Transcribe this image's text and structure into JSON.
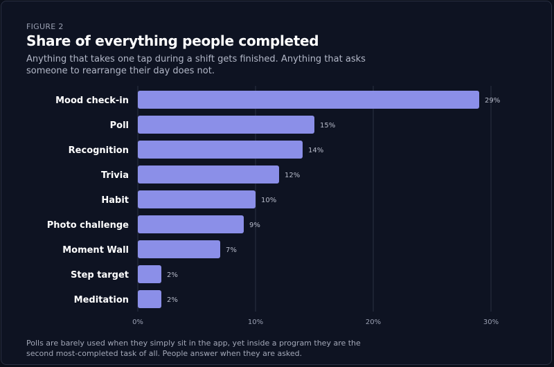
{
  "header": {
    "eyebrow": "FIGURE 2",
    "title": "Share of everything people completed",
    "subtitle": "Anything that takes one tap during a shift gets finished. Anything that asks someone to rearrange their day does not."
  },
  "footer": {
    "note": "Polls are barely used when they simply sit in the app, yet inside a program they are the second most-completed task of all. People answer when they are asked."
  },
  "colors": {
    "bar": "#8b8fe8",
    "grid": "#2a3042"
  },
  "chart_data": {
    "type": "bar",
    "orientation": "horizontal",
    "categories": [
      "Mood check-in",
      "Poll",
      "Recognition",
      "Trivia",
      "Habit",
      "Photo challenge",
      "Moment Wall",
      "Step target",
      "Meditation"
    ],
    "values": [
      29,
      15,
      14,
      12,
      10,
      9,
      7,
      2,
      2
    ],
    "value_labels": [
      "29%",
      "15%",
      "14%",
      "12%",
      "10%",
      "9%",
      "7%",
      "2%",
      "2%"
    ],
    "xlim": [
      0,
      30
    ],
    "x_ticks": [
      0,
      10,
      20,
      30
    ],
    "x_tick_labels": [
      "0%",
      "10%",
      "20%",
      "30%"
    ],
    "grid": true
  }
}
